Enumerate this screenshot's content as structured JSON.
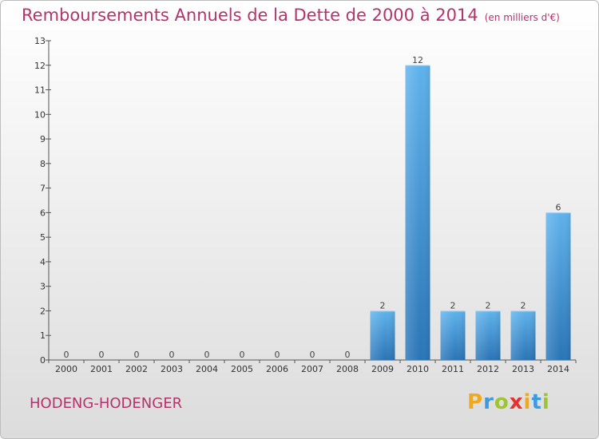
{
  "chart_data": {
    "type": "bar",
    "title": "Remboursements Annuels de la Dette de 2000 à 2014",
    "subtitle": "(en milliers d'€)",
    "categories": [
      "2000",
      "2001",
      "2002",
      "2003",
      "2004",
      "2005",
      "2006",
      "2007",
      "2008",
      "2009",
      "2010",
      "2011",
      "2012",
      "2013",
      "2014"
    ],
    "values": [
      0,
      0,
      0,
      0,
      0,
      0,
      0,
      0,
      0,
      2,
      12,
      2,
      2,
      2,
      6
    ],
    "data_labels": [
      "0",
      "0",
      "0",
      "0",
      "0",
      "0",
      "0",
      "0",
      "0",
      "2",
      "12",
      "2",
      "2",
      "2",
      "6"
    ],
    "ylim": [
      0,
      13
    ],
    "yticks": [
      0,
      1,
      2,
      3,
      4,
      5,
      6,
      7,
      8,
      9,
      10,
      11,
      12,
      13
    ],
    "grid": false,
    "bar_color": "#3d8fd6"
  },
  "footer": {
    "town": "HODENG-HODENGER",
    "logo": [
      "P",
      "r",
      "o",
      "x",
      "i",
      "t",
      "i"
    ],
    "logo_colors": [
      "#f2a81d",
      "#3c9be0",
      "#9dc530",
      "#e8312f",
      "#f2a81d",
      "#3c9be0",
      "#9dc530"
    ]
  }
}
